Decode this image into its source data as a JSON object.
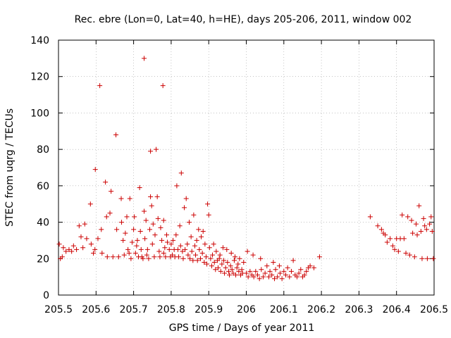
{
  "chart_data": {
    "type": "scatter",
    "title": "Rec. ebre (Lon=0, Lat=40, h=HE), days 205-206, 2011, window 002",
    "xlabel": "GPS time / Days of year 2011",
    "ylabel": "STEC from uqrg / TECUs",
    "xlim": [
      205.5,
      206.5
    ],
    "ylim": [
      0,
      140
    ],
    "xticks": [
      205.5,
      205.6,
      205.7,
      205.8,
      205.9,
      206.0,
      206.1,
      206.2,
      206.3,
      206.4,
      206.5
    ],
    "xtick_labels": [
      "205.5",
      "205.6",
      "205.7",
      "205.8",
      "205.9",
      "206",
      "206.1",
      "206.2",
      "206.3",
      "206.4",
      "206.5"
    ],
    "yticks": [
      0,
      20,
      40,
      60,
      80,
      100,
      120,
      140
    ],
    "ytick_labels": [
      "0",
      "20",
      "40",
      "60",
      "80",
      "100",
      "120",
      "140"
    ],
    "grid": true,
    "marker": "+",
    "color": "#cc0000",
    "series": [
      {
        "points": [
          [
            205.502,
            28
          ],
          [
            205.505,
            20
          ],
          [
            205.51,
            21
          ],
          [
            205.513,
            26
          ],
          [
            205.52,
            24
          ],
          [
            205.528,
            25
          ],
          [
            205.535,
            24
          ],
          [
            205.54,
            27
          ],
          [
            205.548,
            25
          ],
          [
            205.555,
            38
          ],
          [
            205.56,
            32
          ],
          [
            205.565,
            26
          ],
          [
            205.57,
            39
          ],
          [
            205.575,
            31
          ],
          [
            205.585,
            50
          ],
          [
            205.587,
            28
          ],
          [
            205.593,
            23
          ],
          [
            205.597,
            25
          ],
          [
            205.598,
            69
          ],
          [
            205.605,
            31
          ],
          [
            205.61,
            115
          ],
          [
            205.614,
            36
          ],
          [
            205.616,
            23
          ],
          [
            205.625,
            62
          ],
          [
            205.628,
            43
          ],
          [
            205.63,
            21
          ],
          [
            205.637,
            45
          ],
          [
            205.64,
            57
          ],
          [
            205.645,
            21
          ],
          [
            205.653,
            88
          ],
          [
            205.655,
            36
          ],
          [
            205.66,
            21
          ],
          [
            205.667,
            53
          ],
          [
            205.668,
            40
          ],
          [
            205.672,
            30
          ],
          [
            205.675,
            22
          ],
          [
            205.678,
            34
          ],
          [
            205.682,
            43
          ],
          [
            205.685,
            25
          ],
          [
            205.688,
            23
          ],
          [
            205.69,
            53
          ],
          [
            205.693,
            20
          ],
          [
            205.696,
            29
          ],
          [
            205.7,
            36
          ],
          [
            205.702,
            43
          ],
          [
            205.705,
            23
          ],
          [
            205.708,
            27
          ],
          [
            205.71,
            30
          ],
          [
            205.713,
            21
          ],
          [
            205.716,
            59
          ],
          [
            205.718,
            35
          ],
          [
            205.72,
            25
          ],
          [
            205.722,
            21
          ],
          [
            205.725,
            20
          ],
          [
            205.728,
            46
          ],
          [
            205.728,
            130
          ],
          [
            205.73,
            31
          ],
          [
            205.733,
            41
          ],
          [
            205.735,
            22
          ],
          [
            205.737,
            25
          ],
          [
            205.74,
            20
          ],
          [
            205.743,
            36
          ],
          [
            205.745,
            54
          ],
          [
            205.745,
            79
          ],
          [
            205.748,
            49
          ],
          [
            205.75,
            28
          ],
          [
            205.752,
            39
          ],
          [
            205.755,
            21
          ],
          [
            205.757,
            33
          ],
          [
            205.76,
            80
          ],
          [
            205.763,
            54
          ],
          [
            205.765,
            42
          ],
          [
            205.768,
            24
          ],
          [
            205.77,
            21
          ],
          [
            205.772,
            37
          ],
          [
            205.775,
            30
          ],
          [
            205.778,
            115
          ],
          [
            205.78,
            41
          ],
          [
            205.78,
            23
          ],
          [
            205.783,
            26
          ],
          [
            205.785,
            21
          ],
          [
            205.788,
            33
          ],
          [
            205.79,
            29
          ],
          [
            205.795,
            25
          ],
          [
            205.798,
            21
          ],
          [
            205.8,
            28
          ],
          [
            205.803,
            22
          ],
          [
            205.805,
            30
          ],
          [
            205.808,
            25
          ],
          [
            205.81,
            21
          ],
          [
            205.813,
            33
          ],
          [
            205.815,
            60
          ],
          [
            205.818,
            25
          ],
          [
            205.82,
            21
          ],
          [
            205.823,
            38
          ],
          [
            205.825,
            27
          ],
          [
            205.827,
            67
          ],
          [
            205.83,
            24
          ],
          [
            205.832,
            20
          ],
          [
            205.835,
            48
          ],
          [
            205.837,
            25
          ],
          [
            205.84,
            53
          ],
          [
            205.843,
            28
          ],
          [
            205.845,
            22
          ],
          [
            205.848,
            40
          ],
          [
            205.85,
            20
          ],
          [
            205.853,
            32
          ],
          [
            205.855,
            24
          ],
          [
            205.858,
            19
          ],
          [
            205.86,
            44
          ],
          [
            205.863,
            27
          ],
          [
            205.865,
            22
          ],
          [
            205.868,
            30
          ],
          [
            205.87,
            19
          ],
          [
            205.873,
            36
          ],
          [
            205.875,
            25
          ],
          [
            205.878,
            20
          ],
          [
            205.88,
            32
          ],
          [
            205.883,
            23
          ],
          [
            205.885,
            35
          ],
          [
            205.888,
            18
          ],
          [
            205.89,
            28
          ],
          [
            205.893,
            21
          ],
          [
            205.895,
            17
          ],
          [
            205.897,
            50
          ],
          [
            205.9,
            44
          ],
          [
            205.902,
            26
          ],
          [
            205.905,
            20
          ],
          [
            205.908,
            16
          ],
          [
            205.91,
            22
          ],
          [
            205.913,
            28
          ],
          [
            205.915,
            18
          ],
          [
            205.918,
            14
          ],
          [
            205.92,
            24
          ],
          [
            205.923,
            19
          ],
          [
            205.925,
            15
          ],
          [
            205.928,
            20
          ],
          [
            205.93,
            22
          ],
          [
            205.932,
            13
          ],
          [
            205.935,
            17
          ],
          [
            205.938,
            26
          ],
          [
            205.94,
            19
          ],
          [
            205.942,
            12
          ],
          [
            205.945,
            15
          ],
          [
            205.948,
            25
          ],
          [
            205.95,
            18
          ],
          [
            205.953,
            13
          ],
          [
            205.955,
            11
          ],
          [
            205.958,
            16
          ],
          [
            205.96,
            23
          ],
          [
            205.962,
            14
          ],
          [
            205.965,
            12
          ],
          [
            205.968,
            19
          ],
          [
            205.97,
            21
          ],
          [
            205.972,
            11
          ],
          [
            205.975,
            15
          ],
          [
            205.978,
            17
          ],
          [
            205.98,
            13
          ],
          [
            205.982,
            20
          ],
          [
            205.985,
            11
          ],
          [
            205.988,
            14
          ],
          [
            205.99,
            12
          ],
          [
            205.993,
            18
          ],
          [
            206.0,
            12
          ],
          [
            206.003,
            24
          ],
          [
            206.005,
            10
          ],
          [
            206.01,
            13
          ],
          [
            206.015,
            11
          ],
          [
            206.018,
            22
          ],
          [
            206.02,
            10
          ],
          [
            206.025,
            13
          ],
          [
            206.03,
            11
          ],
          [
            206.035,
            9
          ],
          [
            206.038,
            20
          ],
          [
            206.04,
            14
          ],
          [
            206.045,
            10
          ],
          [
            206.05,
            12
          ],
          [
            206.055,
            16
          ],
          [
            206.06,
            10
          ],
          [
            206.063,
            13
          ],
          [
            206.068,
            11
          ],
          [
            206.072,
            18
          ],
          [
            206.075,
            9
          ],
          [
            206.078,
            14
          ],
          [
            206.083,
            10
          ],
          [
            206.088,
            16
          ],
          [
            206.09,
            12
          ],
          [
            206.095,
            9
          ],
          [
            206.1,
            13
          ],
          [
            206.105,
            11
          ],
          [
            206.11,
            15
          ],
          [
            206.115,
            10
          ],
          [
            206.12,
            13
          ],
          [
            206.125,
            19
          ],
          [
            206.13,
            11
          ],
          [
            206.135,
            10
          ],
          [
            206.14,
            12
          ],
          [
            206.145,
            14
          ],
          [
            206.15,
            10
          ],
          [
            206.155,
            11
          ],
          [
            206.16,
            13
          ],
          [
            206.165,
            15
          ],
          [
            206.17,
            16
          ],
          [
            206.18,
            15
          ],
          [
            206.195,
            21
          ],
          [
            206.33,
            43
          ],
          [
            206.35,
            38
          ],
          [
            206.36,
            36
          ],
          [
            206.365,
            34
          ],
          [
            206.37,
            33
          ],
          [
            206.375,
            29
          ],
          [
            206.383,
            31
          ],
          [
            206.39,
            27
          ],
          [
            206.395,
            25
          ],
          [
            206.4,
            31
          ],
          [
            206.405,
            24
          ],
          [
            206.41,
            31
          ],
          [
            206.415,
            44
          ],
          [
            206.42,
            31
          ],
          [
            206.425,
            23
          ],
          [
            206.43,
            43
          ],
          [
            206.435,
            22
          ],
          [
            206.44,
            41
          ],
          [
            206.443,
            34
          ],
          [
            206.448,
            21
          ],
          [
            206.452,
            39
          ],
          [
            206.455,
            33
          ],
          [
            206.46,
            49
          ],
          [
            206.465,
            35
          ],
          [
            206.468,
            20
          ],
          [
            206.472,
            42
          ],
          [
            206.475,
            38
          ],
          [
            206.48,
            36
          ],
          [
            206.482,
            20
          ],
          [
            206.488,
            39
          ],
          [
            206.492,
            43
          ],
          [
            206.495,
            35
          ],
          [
            206.498,
            20
          ]
        ]
      }
    ]
  }
}
